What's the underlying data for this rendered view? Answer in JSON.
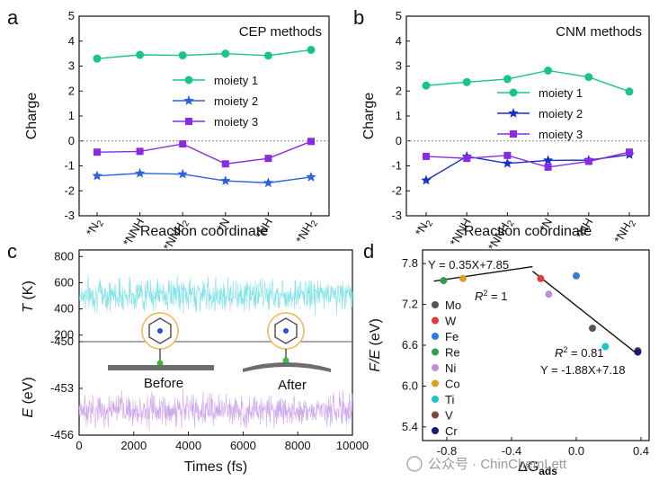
{
  "chart_data": [
    {
      "id": "a",
      "type": "line",
      "panel_label": "a",
      "title": "CEP methods",
      "xlabel": "Reaction coordinate",
      "ylabel": "Charge",
      "ylim": [
        -3,
        5
      ],
      "yticks": [
        "-3",
        "-2",
        "-1",
        "0",
        "1",
        "2",
        "3",
        "4",
        "5"
      ],
      "categories": [
        "*N2",
        "*NNH",
        "*NNH2",
        "*N",
        "*NH",
        "*NH2"
      ],
      "category_main": [
        "*N",
        "*NNH",
        "*NNH",
        "*N",
        "*NH",
        "*NH"
      ],
      "category_sub": [
        "2",
        "",
        "2",
        "",
        "",
        "2"
      ],
      "series": [
        {
          "name": "moiety 1",
          "color": "#19c48c",
          "marker": "circle",
          "values": [
            3.3,
            3.45,
            3.43,
            3.5,
            3.42,
            3.65
          ]
        },
        {
          "name": "moiety 2",
          "color": "#2a63e0",
          "marker": "star",
          "values": [
            -1.4,
            -1.3,
            -1.33,
            -1.6,
            -1.68,
            -1.45
          ]
        },
        {
          "name": "moiety 3",
          "color": "#8a2be2",
          "marker": "square",
          "values": [
            -0.45,
            -0.42,
            -0.12,
            -0.92,
            -0.7,
            -0.02
          ]
        }
      ]
    },
    {
      "id": "b",
      "type": "line",
      "panel_label": "b",
      "title": "CNM methods",
      "xlabel": "Reaction coordinate",
      "ylabel": "Charge",
      "ylim": [
        -3,
        5
      ],
      "yticks": [
        "-3",
        "-2",
        "-1",
        "0",
        "1",
        "2",
        "3",
        "4",
        "5"
      ],
      "categories": [
        "*N2",
        "*NNH",
        "*NNH2",
        "*N",
        "*NH",
        "*NH2"
      ],
      "category_main": [
        "*N",
        "*NNH",
        "*NNH",
        "*N",
        "*NH",
        "*NH"
      ],
      "category_sub": [
        "2",
        "",
        "2",
        "",
        "",
        "2"
      ],
      "series": [
        {
          "name": "moiety 1",
          "color": "#19c48c",
          "marker": "circle",
          "values": [
            2.22,
            2.36,
            2.48,
            2.82,
            2.56,
            1.98
          ]
        },
        {
          "name": "moiety 2",
          "color": "#1a2fc8",
          "marker": "star",
          "values": [
            -1.58,
            -0.62,
            -0.9,
            -0.78,
            -0.77,
            -0.55
          ]
        },
        {
          "name": "moiety 3",
          "color": "#8a2be2",
          "marker": "square",
          "values": [
            -0.62,
            -0.7,
            -0.58,
            -1.05,
            -0.82,
            -0.45
          ]
        }
      ]
    },
    {
      "id": "c",
      "type": "line",
      "panel_label": "c",
      "xlabel": "Times (fs)",
      "xlim": [
        0,
        10000
      ],
      "xticks": [
        "0",
        "2000",
        "4000",
        "6000",
        "8000",
        "10000"
      ],
      "top": {
        "ylabel_var": "T",
        "ylabel_unit": " (K)",
        "ylim": [
          150,
          850
        ],
        "yticks": [
          "200",
          "400",
          "600",
          "800"
        ],
        "mean": 510,
        "spread": 110,
        "color": "#7fe3e8"
      },
      "bottom": {
        "ylabel_var": "E",
        "ylabel_unit": " (eV)",
        "ylim": [
          -456,
          -450
        ],
        "yticks": [
          "-456",
          "-453",
          "-450"
        ],
        "mean": -454.4,
        "spread": 0.9,
        "color": "#cfa8ec"
      },
      "annotations": [
        "Before",
        "After"
      ]
    },
    {
      "id": "d",
      "type": "scatter",
      "panel_label": "d",
      "xlabel_prefix": "ΔG",
      "xlabel_sub": "ads",
      "ylabel_var": "F/E",
      "ylabel_unit": " (eV)",
      "xlim": [
        -0.95,
        0.45
      ],
      "ylim": [
        5.2,
        8.0
      ],
      "xticks": [
        "-0.8",
        "-0.4",
        "0.0",
        "0.4"
      ],
      "yticks": [
        "5.4",
        "6.0",
        "6.6",
        "7.2",
        "7.8"
      ],
      "points": [
        {
          "name": "Mo",
          "color": "#555555",
          "x": 0.1,
          "y": 6.85
        },
        {
          "name": "W",
          "color": "#e03c3c",
          "x": -0.22,
          "y": 7.58
        },
        {
          "name": "Fe",
          "color": "#2f7fd8",
          "x": 0.0,
          "y": 7.62
        },
        {
          "name": "Re",
          "color": "#2e9e4e",
          "x": -0.82,
          "y": 7.55
        },
        {
          "name": "Ni",
          "color": "#c58be0",
          "x": -0.17,
          "y": 7.35
        },
        {
          "name": "Co",
          "color": "#d8a020",
          "x": -0.7,
          "y": 7.58
        },
        {
          "name": "Ti",
          "color": "#1ec5cc",
          "x": 0.18,
          "y": 6.58
        },
        {
          "name": "V",
          "color": "#7a4a40",
          "x": 0.38,
          "y": 6.52
        },
        {
          "name": "Cr",
          "color": "#1a1a7a",
          "x": 0.38,
          "y": 6.5
        }
      ],
      "fit_left": {
        "equation_lhs": "Y = 0.35X+7.85",
        "r2_label": "R",
        "r2_value": "2",
        "r2_text": " = 1",
        "slope": 0.35,
        "intercept": 7.85,
        "x_range": [
          -0.88,
          -0.27
        ]
      },
      "fit_right": {
        "equation": "Y = -1.88X+7.18",
        "r2_label": "R",
        "r2_value": "2",
        "r2_text": " = 0.81",
        "slope": -1.88,
        "intercept": 7.18,
        "x_range": [
          -0.27,
          0.38
        ]
      }
    }
  ],
  "watermark": "公众号 · ChinChemLett"
}
